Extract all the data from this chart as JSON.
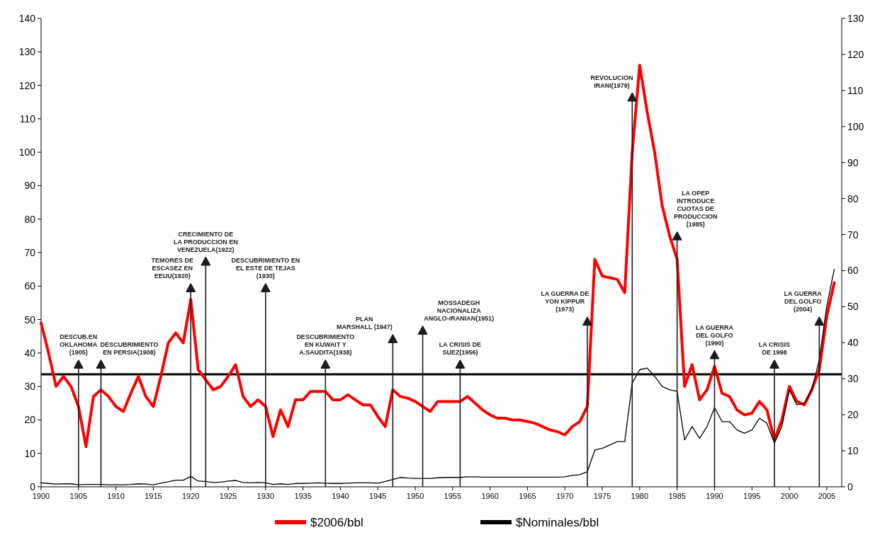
{
  "chart_data": {
    "type": "line",
    "x": [
      1900,
      1901,
      1902,
      1903,
      1904,
      1905,
      1906,
      1907,
      1908,
      1909,
      1910,
      1911,
      1912,
      1913,
      1914,
      1915,
      1916,
      1917,
      1918,
      1919,
      1920,
      1921,
      1922,
      1923,
      1924,
      1925,
      1926,
      1927,
      1928,
      1929,
      1930,
      1931,
      1932,
      1933,
      1934,
      1935,
      1936,
      1937,
      1938,
      1939,
      1940,
      1941,
      1942,
      1943,
      1944,
      1945,
      1946,
      1947,
      1948,
      1949,
      1950,
      1951,
      1952,
      1953,
      1954,
      1955,
      1956,
      1957,
      1958,
      1959,
      1960,
      1961,
      1962,
      1963,
      1964,
      1965,
      1966,
      1967,
      1968,
      1969,
      1970,
      1971,
      1972,
      1973,
      1974,
      1975,
      1976,
      1977,
      1978,
      1979,
      1980,
      1981,
      1982,
      1983,
      1984,
      1985,
      1986,
      1987,
      1988,
      1989,
      1990,
      1991,
      1992,
      1993,
      1994,
      1995,
      1996,
      1997,
      1998,
      1999,
      2000,
      2001,
      2002,
      2003,
      2004,
      2005,
      2006
    ],
    "series": [
      {
        "name": "$2006/bbl",
        "color": "#ff0000",
        "values": [
          49,
          40,
          30,
          33,
          30,
          24,
          12,
          27,
          29,
          27,
          24,
          22.5,
          28,
          33,
          27,
          24,
          33,
          43,
          46,
          43,
          56,
          35,
          32,
          29,
          30,
          33,
          36.5,
          27,
          24,
          26,
          24,
          15,
          23,
          18,
          26,
          26,
          28.5,
          28.5,
          28.5,
          26,
          26,
          27.5,
          26,
          24.5,
          24.5,
          21,
          18,
          29,
          27,
          26.5,
          25.5,
          24,
          22.5,
          25.5,
          25.5,
          25.5,
          25.5,
          27,
          25,
          23,
          21.5,
          20.5,
          20.5,
          20,
          20,
          19.5,
          19,
          18,
          17,
          16.5,
          15.5,
          18,
          19.5,
          24,
          68,
          63,
          62.5,
          62,
          58,
          100,
          126,
          112,
          100,
          84,
          75,
          68,
          30,
          36.5,
          26,
          29,
          36,
          28,
          27,
          23,
          21.5,
          22,
          25.5,
          23,
          14,
          20,
          30,
          25.5,
          24.5,
          29,
          35,
          51,
          61
        ]
      },
      {
        "name": "$Nominales/bbl",
        "color": "#000000",
        "values": [
          1.2,
          1,
          0.8,
          0.9,
          0.9,
          0.6,
          0.7,
          0.7,
          0.7,
          0.6,
          0.6,
          0.6,
          0.7,
          0.9,
          0.8,
          0.6,
          1.1,
          1.5,
          2,
          2,
          3.1,
          1.7,
          1.6,
          1.3,
          1.4,
          1.7,
          1.9,
          1.3,
          1.2,
          1.3,
          1.2,
          0.7,
          0.9,
          0.7,
          1,
          1,
          1.1,
          1.2,
          1.1,
          1,
          1,
          1.1,
          1.2,
          1.2,
          1.2,
          1.1,
          1.6,
          2.2,
          2.8,
          2.6,
          2.5,
          2.5,
          2.5,
          2.7,
          2.8,
          2.8,
          2.8,
          3,
          3,
          2.9,
          2.9,
          2.9,
          2.9,
          2.9,
          2.9,
          2.9,
          2.9,
          2.9,
          2.9,
          2.9,
          3,
          3.4,
          3.6,
          4.5,
          11,
          11.5,
          12.5,
          13.5,
          13.5,
          31,
          35,
          35.5,
          33,
          30,
          29,
          28.5,
          14,
          18,
          14.5,
          18,
          23.7,
          19.5,
          19.5,
          17,
          16,
          17,
          20.5,
          19,
          13,
          18,
          29,
          24.5,
          25,
          29,
          38,
          54,
          65
        ]
      }
    ],
    "xlim": [
      1900,
      2007
    ],
    "xticks": [
      1900,
      1905,
      1910,
      1915,
      1920,
      1925,
      1930,
      1935,
      1940,
      1945,
      1950,
      1955,
      1960,
      1965,
      1970,
      1975,
      1980,
      1985,
      1990,
      1995,
      2000,
      2005
    ],
    "ylim": [
      0,
      140
    ],
    "yticks": [
      0,
      10,
      20,
      30,
      40,
      50,
      60,
      70,
      80,
      90,
      100,
      110,
      120,
      130,
      140
    ],
    "y2lim": [
      0,
      130
    ],
    "y2ticks": [
      0,
      10,
      20,
      30,
      40,
      50,
      60,
      70,
      80,
      90,
      100,
      110,
      120,
      130
    ],
    "ref_lines": [
      {
        "axis": "y",
        "value": 33.6,
        "color": "#000000"
      },
      {
        "axis": "x",
        "value": 1905,
        "label": "DESCUB.EN\nOKLAHOMA\n(1905)"
      },
      {
        "axis": "x",
        "value": 1908,
        "label": "DESCUBRIMIENTO\nEN PERSIA(1908)"
      },
      {
        "axis": "x",
        "value": 1920,
        "label": "TEMORES DE\nESCASEZ EN\nEEUU(1920)"
      },
      {
        "axis": "x",
        "value": 1922,
        "label": "CRECIMIENTO DE\nLA PRODUCCION EN\nVENEZUELA(1922)"
      },
      {
        "axis": "x",
        "value": 1930,
        "label": "DESCUBRIMIENTO EN\nEL ESTE DE TEJAS\n(1930)"
      },
      {
        "axis": "x",
        "value": 1938,
        "label": "DESCUBRIMIENTO\nEN KUWAIT Y\nA.SAUDITA(1938)"
      },
      {
        "axis": "x",
        "value": 1947,
        "label": "PLAN\nMARSHALL (1947)"
      },
      {
        "axis": "x",
        "value": 1951,
        "label": "MOSSADEGH\nNACIONALIZA\nANGLO-IRANIAN(1951)"
      },
      {
        "axis": "x",
        "value": 1956,
        "label": "LA CRISIS DE\nSUEZ(1956)"
      },
      {
        "axis": "x",
        "value": 1973,
        "label": "LA GUERRA DE\nYON KIPPUR\n(1973)"
      },
      {
        "axis": "x",
        "value": 1979,
        "label": "REVOLUCION\nIRANI(1979)"
      },
      {
        "axis": "x",
        "value": 1985,
        "label": "LA OPEP\nINTRODUCE\nCUOTAS DE\nPRODUCCION\n(1985)"
      },
      {
        "axis": "x",
        "value": 1990,
        "label": "LA GUERRA\nDEL GOLFO\n(1990)"
      },
      {
        "axis": "x",
        "value": 1998,
        "label": "LA CRISIS\nDE 1998"
      },
      {
        "axis": "x",
        "value": 2004,
        "label": "LA GUERRA\nDEL GOLFO\n(2004)"
      }
    ],
    "grid": false,
    "legend": "bottom",
    "marker": "none",
    "line_style": "solid"
  }
}
